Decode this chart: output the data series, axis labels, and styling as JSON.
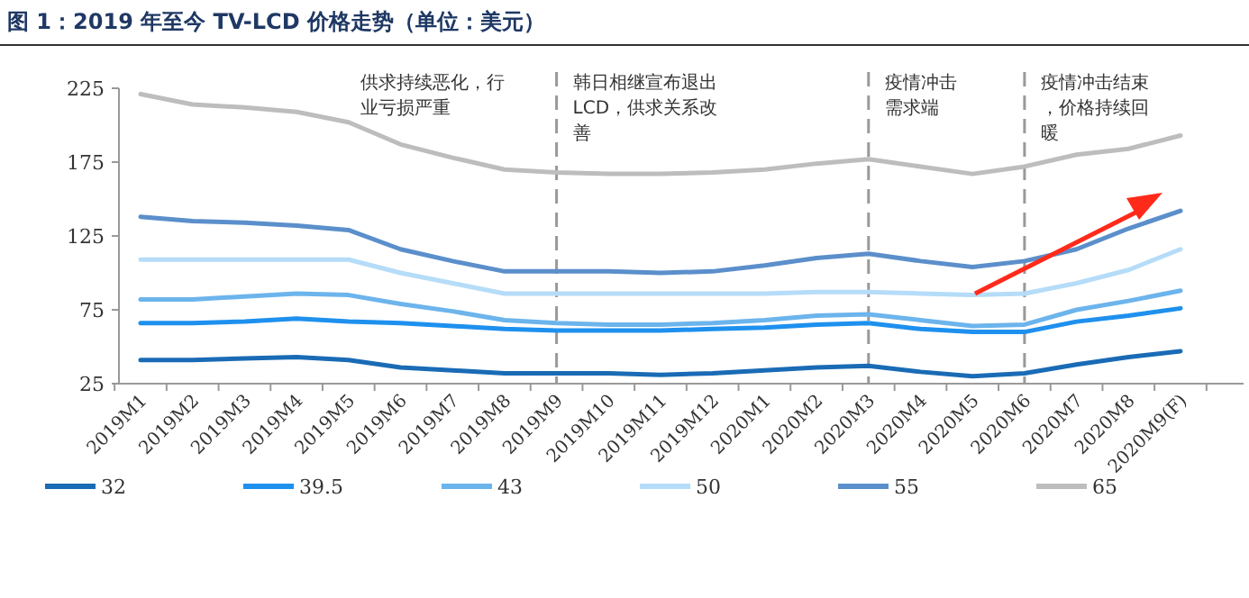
{
  "chart_data": {
    "type": "line",
    "title": "图 1：2019 年至今 TV-LCD 价格走势（单位：美元）",
    "categories": [
      "2019M1",
      "2019M2",
      "2019M3",
      "2019M4",
      "2019M5",
      "2019M6",
      "2019M7",
      "2019M8",
      "2019M9",
      "2019M10",
      "2019M11",
      "2019M12",
      "2020M1",
      "2020M2",
      "2020M3",
      "2020M4",
      "2020M5",
      "2020M6",
      "2020M7",
      "2020M8",
      "2020M9(F)"
    ],
    "series": [
      {
        "name": "32",
        "color": "#1a6bb5",
        "values": [
          41,
          41,
          42,
          43,
          41,
          36,
          34,
          32,
          32,
          32,
          31,
          32,
          34,
          36,
          37,
          33,
          30,
          32,
          38,
          43,
          47
        ]
      },
      {
        "name": "39.5",
        "color": "#1e90ee",
        "values": [
          66,
          66,
          67,
          69,
          67,
          66,
          64,
          62,
          61,
          61,
          61,
          62,
          63,
          65,
          66,
          62,
          60,
          60,
          67,
          71,
          76
        ]
      },
      {
        "name": "43",
        "color": "#6cb4ec",
        "values": [
          82,
          82,
          84,
          86,
          85,
          79,
          74,
          68,
          66,
          65,
          65,
          66,
          68,
          71,
          72,
          68,
          64,
          65,
          75,
          81,
          88
        ]
      },
      {
        "name": "50",
        "color": "#b5dcf8",
        "values": [
          109,
          109,
          109,
          109,
          109,
          100,
          93,
          86,
          86,
          86,
          86,
          86,
          86,
          87,
          87,
          86,
          85,
          86,
          93,
          102,
          116
        ]
      },
      {
        "name": "55",
        "color": "#5b8fcb",
        "values": [
          138,
          135,
          134,
          132,
          129,
          116,
          108,
          101,
          101,
          101,
          100,
          101,
          105,
          110,
          113,
          108,
          104,
          108,
          116,
          130,
          142
        ]
      },
      {
        "name": "65",
        "color": "#bdbdbd",
        "values": [
          221,
          214,
          212,
          209,
          202,
          187,
          178,
          170,
          168,
          167,
          167,
          168,
          170,
          174,
          177,
          172,
          167,
          172,
          180,
          184,
          193
        ]
      }
    ],
    "ylim": [
      25,
      225
    ],
    "yticks": [
      25,
      75,
      125,
      175,
      225
    ],
    "ref_lines": [
      {
        "axis": "x",
        "value": "2019M9",
        "color": "#999999",
        "line_style": "dashed"
      },
      {
        "axis": "x",
        "value": "2020M3",
        "color": "#999999",
        "line_style": "dashed"
      },
      {
        "axis": "x",
        "value": "2020M6",
        "color": "#999999",
        "line_style": "dashed"
      }
    ],
    "annotations": [
      "供求持续恶化，行业亏损严重",
      "韩日相继宣布退出LCD，供求关系改善",
      "疫情冲击需求端",
      "疫情冲击结束，价格持续回暖"
    ],
    "legend": "bottom"
  }
}
